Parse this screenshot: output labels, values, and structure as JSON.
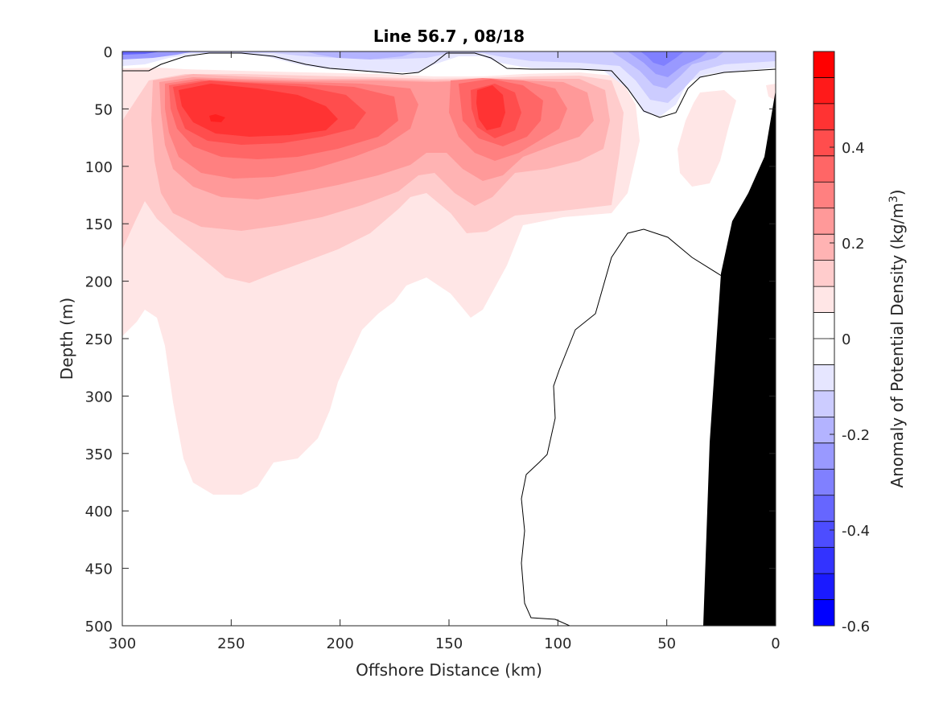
{
  "chart_data": {
    "type": "heatmap",
    "title": "Line 56.7 , 08/18",
    "xlabel": "Offshore Distance (km)",
    "ylabel": "Depth (m)",
    "xlim": [
      300,
      0
    ],
    "ylim": [
      0,
      500
    ],
    "x_ticks": [
      300,
      250,
      200,
      150,
      100,
      50,
      0
    ],
    "y_ticks": [
      0,
      50,
      100,
      150,
      200,
      250,
      300,
      350,
      400,
      450,
      500
    ],
    "colorbar": {
      "label": "Anomaly of Potential Density (kg/m",
      "label_superscript": "3",
      "label_suffix": ")",
      "range": [
        -0.6,
        0.6
      ],
      "ticks": [
        0.4,
        0.2,
        0,
        -0.2,
        -0.4,
        -0.6
      ],
      "levels": [
        0.6,
        0.55,
        0.5,
        0.45,
        0.4,
        0.35,
        0.3,
        0.25,
        0.2,
        0.15,
        0.1,
        0.05,
        0,
        -0.05,
        -0.1,
        -0.15,
        -0.2,
        -0.25,
        -0.3,
        -0.35,
        -0.4,
        -0.45,
        -0.5,
        -0.55,
        -0.6
      ],
      "colors": [
        "#ff0000",
        "#ff1a1a",
        "#ff3333",
        "#ff4d4d",
        "#ff6666",
        "#ff8080",
        "#ff9999",
        "#ffb3b3",
        "#ffcccc",
        "#ffe6e6",
        "#ffffff",
        "#ffffff",
        "#e6e6ff",
        "#ccccff",
        "#b3b3ff",
        "#9999ff",
        "#8080ff",
        "#6666ff",
        "#4d4dff",
        "#3333ff",
        "#1a1aff",
        "#0000ff"
      ]
    },
    "features": {
      "positive_core_1": {
        "x_km": 257,
        "depth_m": 58,
        "value": 0.45
      },
      "positive_core_2": {
        "x_km": 133,
        "depth_m": 50,
        "value": 0.35
      },
      "negative_surface": {
        "x_km": 55,
        "depth_m": 5,
        "value": -0.25
      },
      "bathymetry_fill": "#000000"
    }
  }
}
